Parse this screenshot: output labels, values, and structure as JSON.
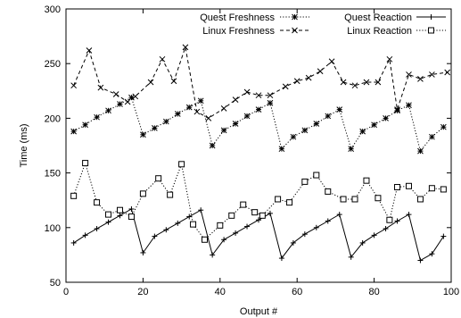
{
  "chart_data": {
    "type": "line",
    "xlabel": "Output #",
    "ylabel": "Time (ms)",
    "xlim": [
      0,
      100
    ],
    "ylim": [
      50,
      300
    ],
    "xticks": [
      0,
      20,
      40,
      60,
      80,
      100
    ],
    "yticks": [
      50,
      100,
      150,
      200,
      250,
      300
    ],
    "grid": false,
    "legend_position": "top",
    "series": [
      {
        "name": "Quest Freshness",
        "line_style": "dotted",
        "marker": "asterisk",
        "x": [
          2,
          5,
          8,
          11,
          14,
          17,
          20,
          23,
          26,
          29,
          32,
          35,
          38,
          41,
          44,
          47,
          50,
          53,
          56,
          59,
          62,
          65,
          68,
          71,
          74,
          77,
          80,
          83,
          86,
          89,
          92,
          95,
          98
        ],
        "y": [
          188,
          194,
          201,
          207,
          213,
          219,
          185,
          191,
          197,
          204,
          210,
          216,
          175,
          189,
          195,
          202,
          208,
          214,
          172,
          183,
          189,
          195,
          202,
          208,
          172,
          188,
          194,
          200,
          207,
          212,
          170,
          183,
          192
        ]
      },
      {
        "name": "Linux Freshness",
        "line_style": "dashed",
        "marker": "x",
        "x": [
          2,
          6,
          9,
          13,
          16,
          18,
          22,
          25,
          28,
          31,
          34,
          37,
          41,
          44,
          47,
          50,
          53,
          57,
          60,
          63,
          66,
          69,
          72,
          75,
          78,
          81,
          84,
          86,
          89,
          92,
          95,
          99
        ],
        "y": [
          230,
          262,
          228,
          222,
          215,
          220,
          233,
          254,
          234,
          265,
          206,
          200,
          209,
          217,
          224,
          221,
          221,
          229,
          234,
          237,
          243,
          252,
          233,
          230,
          233,
          233,
          254,
          208,
          240,
          236,
          240,
          242
        ]
      },
      {
        "name": "Quest Reaction",
        "line_style": "solid",
        "marker": "plus",
        "x": [
          2,
          5,
          8,
          11,
          14,
          17,
          20,
          23,
          26,
          29,
          32,
          35,
          38,
          41,
          44,
          47,
          50,
          53,
          56,
          59,
          62,
          65,
          68,
          71,
          74,
          77,
          80,
          83,
          86,
          89,
          92,
          95,
          98
        ],
        "y": [
          86,
          93,
          99,
          105,
          111,
          117,
          77,
          92,
          98,
          104,
          110,
          116,
          75,
          89,
          95,
          101,
          107,
          113,
          72,
          86,
          94,
          100,
          106,
          112,
          73,
          86,
          93,
          99,
          106,
          112,
          70,
          76,
          92
        ]
      },
      {
        "name": "Linux Reaction",
        "line_style": "dotted",
        "marker": "square",
        "x": [
          2,
          5,
          8,
          11,
          14,
          17,
          20,
          24,
          27,
          30,
          33,
          36,
          40,
          43,
          46,
          49,
          51,
          55,
          58,
          62,
          65,
          68,
          72,
          75,
          78,
          81,
          84,
          86,
          89,
          92,
          95,
          98
        ],
        "y": [
          129,
          159,
          123,
          112,
          116,
          110,
          131,
          145,
          130,
          158,
          103,
          89,
          102,
          111,
          121,
          114,
          111,
          126,
          123,
          142,
          148,
          133,
          126,
          126,
          143,
          127,
          107,
          137,
          138,
          126,
          136,
          135
        ]
      }
    ]
  }
}
